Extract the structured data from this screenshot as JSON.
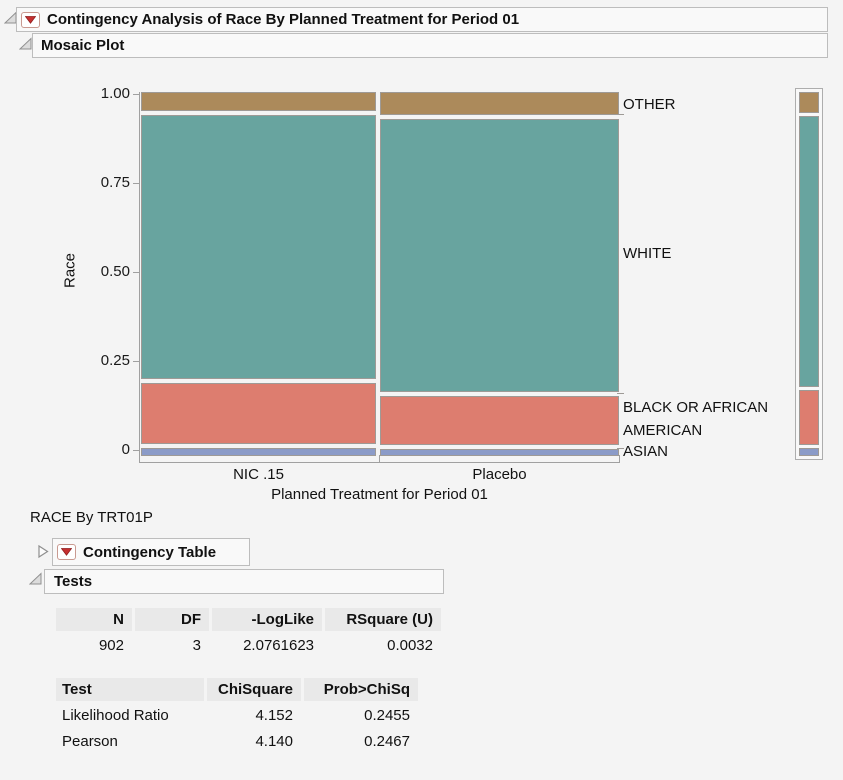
{
  "outline": {
    "main": {
      "title": "Contingency Analysis of Race By Planned Treatment for Period 01"
    },
    "mosaic": {
      "title": "Mosaic Plot"
    },
    "race_by_label": "RACE By TRT01P",
    "contingency": {
      "title": "Contingency Table"
    },
    "tests": {
      "title": "Tests"
    }
  },
  "chart_data": {
    "type": "mosaic",
    "title": "Mosaic Plot",
    "xlabel": "Planned Treatment for Period 01",
    "ylabel": "Race",
    "ylim": [
      0,
      1
    ],
    "categories": [
      "NIC .15",
      "Placebo"
    ],
    "column_width_fractions": [
      0.494,
      0.506
    ],
    "levels_bottom_to_top": [
      "ASIAN",
      "BLACK OR AFRICAN AMERICAN",
      "WHITE",
      "OTHER"
    ],
    "right_labels": [
      "OTHER",
      "WHITE",
      "BLACK OR AFRICAN AMERICAN",
      "ASIAN"
    ],
    "y_ticks": [
      {
        "label": "1.00",
        "value": 1
      },
      {
        "label": "0.75",
        "value": 0.75
      },
      {
        "label": "0.50",
        "value": 0.5
      },
      {
        "label": "0.25",
        "value": 0.25
      },
      {
        "label": "0",
        "value": 0
      }
    ],
    "series": [
      {
        "name": "NIC .15",
        "fractions": {
          "ASIAN": 0.024,
          "BLACK OR AFRICAN AMERICAN": 0.172,
          "WHITE": 0.75,
          "OTHER": 0.054
        }
      },
      {
        "name": "Placebo",
        "fractions": {
          "ASIAN": 0.02,
          "BLACK OR AFRICAN AMERICAN": 0.14,
          "WHITE": 0.775,
          "OTHER": 0.065
        }
      }
    ],
    "overall_fractions": {
      "ASIAN": 0.022,
      "BLACK OR AFRICAN AMERICAN": 0.156,
      "WHITE": 0.763,
      "OTHER": 0.059
    },
    "colors": {
      "ASIAN": "#8B9BC8",
      "BLACK OR AFRICAN AMERICAN": "#DD7D6F",
      "WHITE": "#68A49F",
      "OTHER": "#AC8A5B"
    },
    "legend_position": "right-strip"
  },
  "summary_table": {
    "headers": [
      "N",
      "DF",
      "-LogLike",
      "RSquare (U)"
    ],
    "rows": [
      [
        "902",
        "3",
        "2.0761623",
        "0.0032"
      ]
    ]
  },
  "tests_table": {
    "headers": [
      "Test",
      "ChiSquare",
      "Prob>ChiSq"
    ],
    "rows": [
      [
        "Likelihood Ratio",
        "4.152",
        "0.2455"
      ],
      [
        "Pearson",
        "4.140",
        "0.2467"
      ]
    ]
  }
}
